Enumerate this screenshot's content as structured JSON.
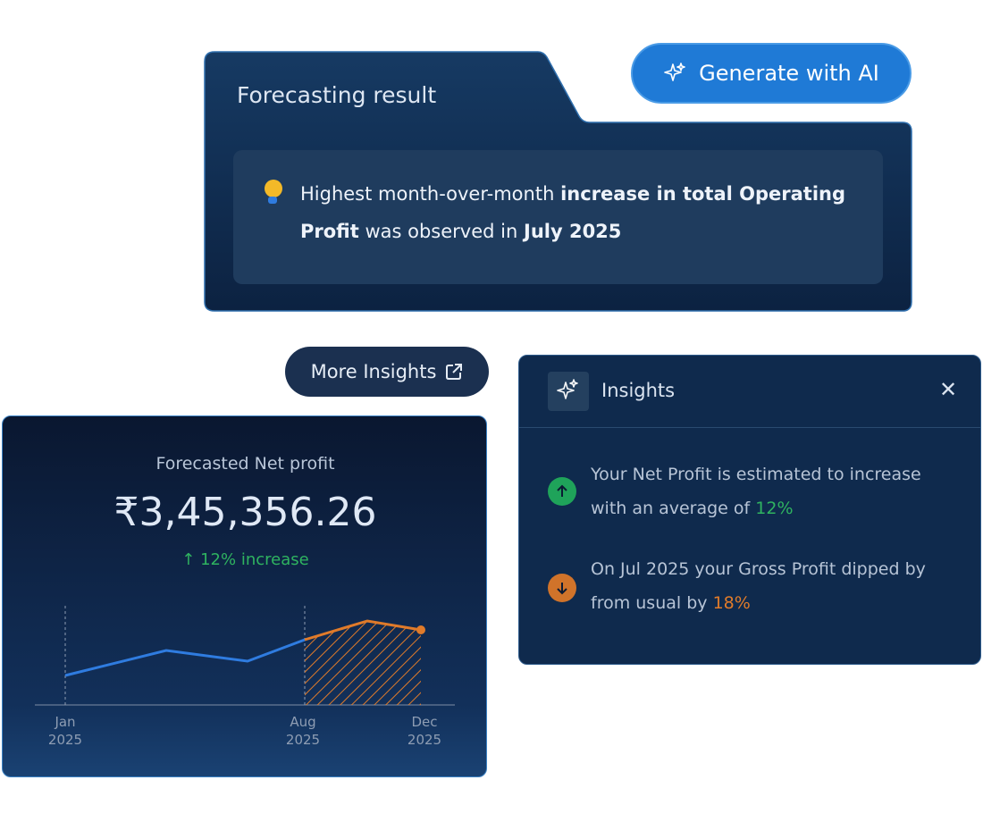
{
  "generate_button": "Generate with AI",
  "forecast_card": {
    "title": "Forecasting result",
    "insight": [
      "Highest month-over-month",
      "increase in total Operating Profit",
      "was observed in",
      "July 2025"
    ]
  },
  "more_insights": "More Insights",
  "net_profit": {
    "label": "Forecasted Net profit",
    "amount": "₹3,45,356.26",
    "change": "12% increase",
    "x_labels": [
      {
        "month": "Jan",
        "year": "2025"
      },
      {
        "month": "Aug",
        "year": "2025"
      },
      {
        "month": "Dec",
        "year": "2025"
      }
    ]
  },
  "insights_panel": {
    "title": "Insights",
    "items": [
      {
        "text": "Your Net Profit is estimated to increase with an average of",
        "highlight": "12%"
      },
      {
        "text": "On Jul 2025 your Gross Profit dipped by from usual by",
        "highlight": "18%"
      }
    ]
  }
}
